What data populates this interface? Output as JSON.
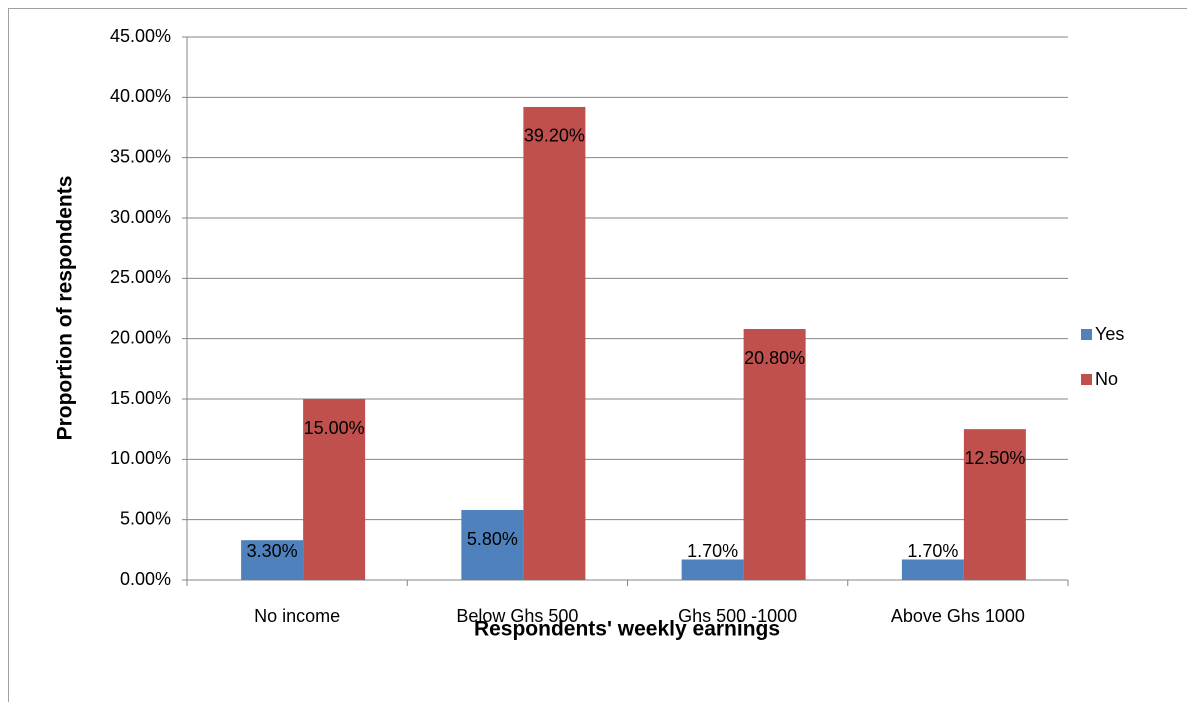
{
  "chart_data": {
    "type": "bar",
    "categories": [
      "No income",
      "Below Ghs 500",
      "Ghs 500 -1000",
      "Above Ghs 1000"
    ],
    "series": [
      {
        "name": "Yes",
        "color": "#4f81bd",
        "values": [
          3.3,
          5.8,
          1.7,
          1.7
        ],
        "value_labels": [
          "3.30%",
          "5.80%",
          "1.70%",
          "1.70%"
        ]
      },
      {
        "name": "No",
        "color": "#c0504d",
        "values": [
          15.0,
          39.2,
          20.8,
          12.5
        ],
        "value_labels": [
          "15.00%",
          "39.20%",
          "20.80%",
          "12.50%"
        ]
      }
    ],
    "xlabel": "Respondents' weekly earnings",
    "ylabel": "Proportion of respondents",
    "ylim": [
      0,
      45
    ],
    "yticks": [
      {
        "value": 0,
        "label": "0.00%"
      },
      {
        "value": 5,
        "label": "5.00%"
      },
      {
        "value": 10,
        "label": "10.00%"
      },
      {
        "value": 15,
        "label": "15.00%"
      },
      {
        "value": 20,
        "label": "20.00%"
      },
      {
        "value": 25,
        "label": "25.00%"
      },
      {
        "value": 30,
        "label": "30.00%"
      },
      {
        "value": 35,
        "label": "35.00%"
      },
      {
        "value": 40,
        "label": "40.00%"
      },
      {
        "value": 45,
        "label": "45.00%"
      }
    ],
    "grid": true,
    "legend": "right"
  }
}
